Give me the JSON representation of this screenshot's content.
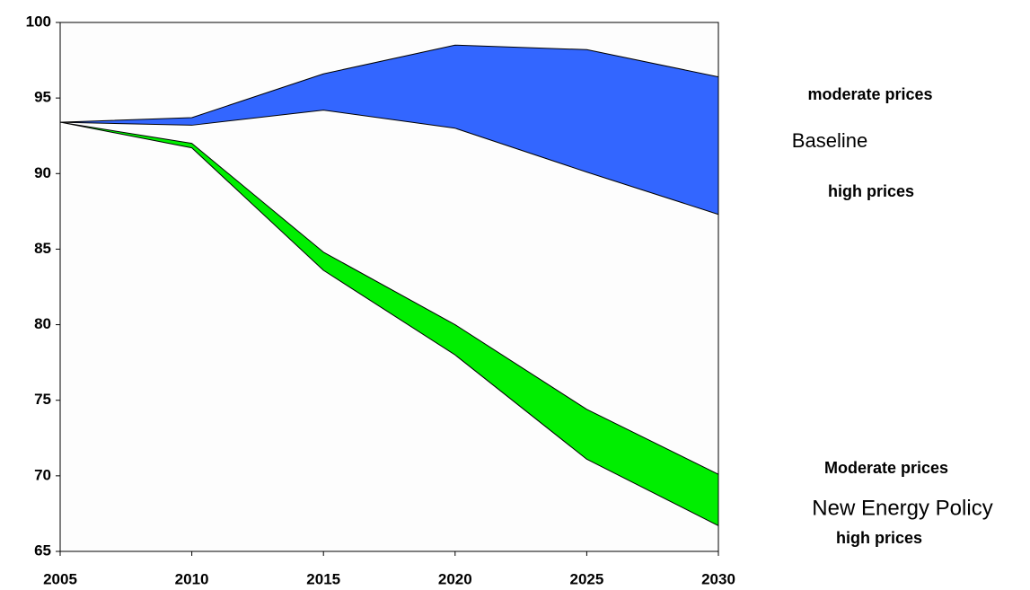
{
  "chart_data": {
    "type": "band",
    "x": [
      2005,
      2010,
      2015,
      2020,
      2025,
      2030
    ],
    "xlim": [
      2005,
      2030
    ],
    "xticks": [
      2005,
      2010,
      2015,
      2020,
      2025,
      2030
    ],
    "ylim": [
      65,
      100
    ],
    "yticks": [
      65,
      70,
      75,
      80,
      85,
      90,
      95,
      100
    ],
    "series": [
      {
        "name": "Baseline",
        "color": "#3366ff",
        "upper_label": "moderate prices",
        "lower_label": "high prices",
        "upper": [
          93.4,
          93.7,
          96.6,
          98.5,
          98.2,
          96.4
        ],
        "lower": [
          93.4,
          93.2,
          94.2,
          93.0,
          90.1,
          87.3
        ]
      },
      {
        "name": "New Energy Policy",
        "color": "#00ee00",
        "upper_label": "Moderate prices",
        "lower_label": "high prices",
        "upper": [
          93.4,
          92.0,
          84.8,
          80.0,
          74.4,
          70.1
        ],
        "lower": [
          93.4,
          91.7,
          83.6,
          78.0,
          71.1,
          66.7
        ]
      }
    ]
  }
}
